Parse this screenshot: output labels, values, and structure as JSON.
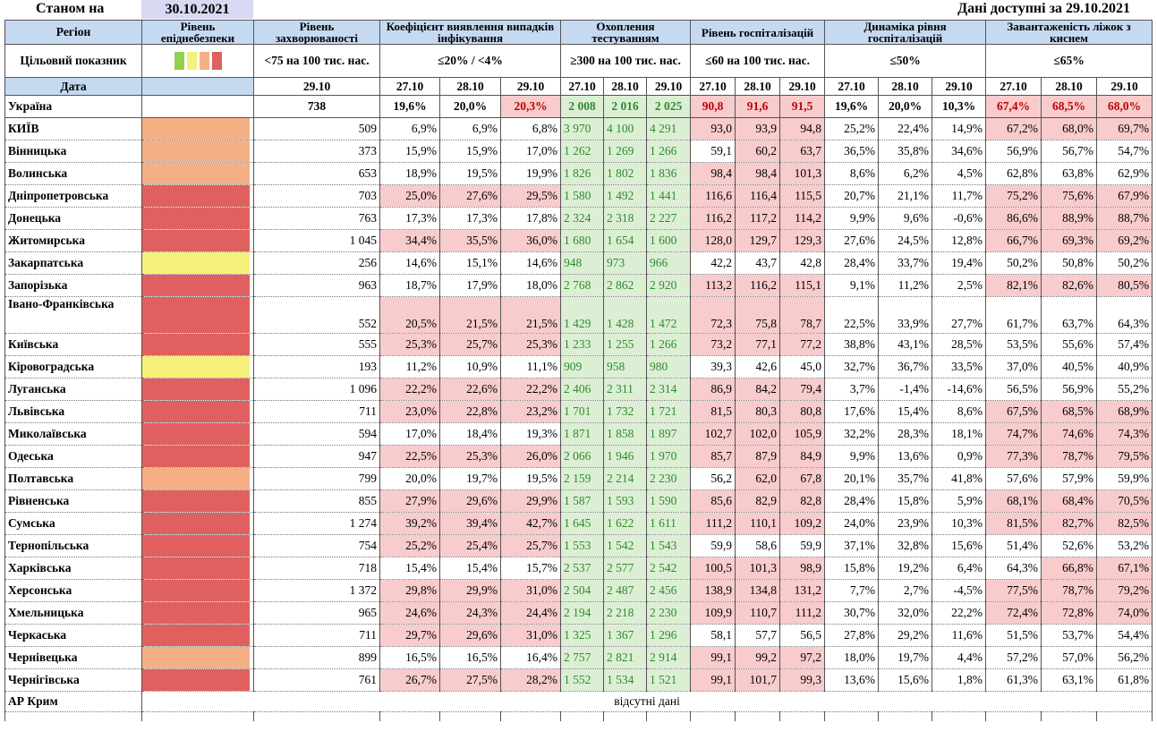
{
  "header": {
    "asof_label": "Станом на",
    "asof_date": "30.10.2021",
    "available_label": "Дані доступні за 29.10.2021"
  },
  "columns": {
    "region": "Регіон",
    "level": "Рівень епіднебезпеки",
    "incidence": "Рівень захворюваності",
    "detection": "Коефіцієнт виявлення випадків інфікування",
    "testing": "Охоплення тестуванням",
    "hosp": "Рівень госпіталізацій",
    "hosp_dyn": "Динаміка рівня госпіталізацій",
    "oxygen": "Завантаженість ліжок з киснем"
  },
  "targets": {
    "label": "Цільовий показник",
    "incidence": "<75 на 100 тис. нас.",
    "detection": "≤20% / <4%",
    "testing": "≥300 на 100 тис. нас.",
    "hosp": "≤60 на 100 тис. нас.",
    "hosp_dyn": "≤50%",
    "oxygen": "≤65%"
  },
  "legend_colors": [
    "#92d050",
    "#f4f07a",
    "#f4b084",
    "#e06060"
  ],
  "dates": {
    "label": "Дата",
    "incidence": "29.10",
    "triple": [
      "27.10",
      "28.10",
      "29.10"
    ]
  },
  "level_colors": {
    "orange": "#f4b084",
    "red": "#e06060",
    "yellow": "#f4f07a"
  },
  "ukraine": {
    "name": "Україна",
    "incidence": "738",
    "detection": [
      "19,6%",
      "20,0%",
      "20,3%"
    ],
    "testing": [
      "2 008",
      "2 016",
      "2 025"
    ],
    "hosp": [
      "90,8",
      "91,6",
      "91,5"
    ],
    "hosp_dyn": [
      "19,6%",
      "20,0%",
      "10,3%"
    ],
    "oxygen": [
      "67,4%",
      "68,5%",
      "68,0%"
    ]
  },
  "regions": [
    {
      "name": "КИЇВ",
      "level": "orange",
      "incidence": "509",
      "detection": [
        "6,9%",
        "6,9%",
        "6,8%"
      ],
      "testing": [
        "3 970",
        "4 100",
        "4 291"
      ],
      "hosp": [
        "93,0",
        "93,9",
        "94,8"
      ],
      "hosp_dyn": [
        "25,2%",
        "22,4%",
        "14,9%"
      ],
      "oxygen": [
        "67,2%",
        "68,0%",
        "69,7%"
      ]
    },
    {
      "name": "Вінницька",
      "level": "orange",
      "incidence": "373",
      "detection": [
        "15,9%",
        "15,9%",
        "17,0%"
      ],
      "testing": [
        "1 262",
        "1 269",
        "1 266"
      ],
      "hosp": [
        "59,1",
        "60,2",
        "63,7"
      ],
      "hosp_dyn": [
        "36,5%",
        "35,8%",
        "34,6%"
      ],
      "oxygen": [
        "56,9%",
        "56,7%",
        "54,7%"
      ]
    },
    {
      "name": "Волинська",
      "level": "orange",
      "incidence": "653",
      "detection": [
        "18,9%",
        "19,5%",
        "19,9%"
      ],
      "testing": [
        "1 826",
        "1 802",
        "1 836"
      ],
      "hosp": [
        "98,4",
        "98,4",
        "101,3"
      ],
      "hosp_dyn": [
        "8,6%",
        "6,2%",
        "4,5%"
      ],
      "oxygen": [
        "62,8%",
        "63,8%",
        "62,9%"
      ]
    },
    {
      "name": "Дніпропетровська",
      "level": "red",
      "incidence": "703",
      "detection": [
        "25,0%",
        "27,6%",
        "29,5%"
      ],
      "testing": [
        "1 580",
        "1 492",
        "1 441"
      ],
      "hosp": [
        "116,6",
        "116,4",
        "115,5"
      ],
      "hosp_dyn": [
        "20,7%",
        "21,1%",
        "11,7%"
      ],
      "oxygen": [
        "75,2%",
        "75,6%",
        "67,9%"
      ]
    },
    {
      "name": "Донецька",
      "level": "red",
      "incidence": "763",
      "detection": [
        "17,3%",
        "17,3%",
        "17,8%"
      ],
      "testing": [
        "2 324",
        "2 318",
        "2 227"
      ],
      "hosp": [
        "116,2",
        "117,2",
        "114,2"
      ],
      "hosp_dyn": [
        "9,9%",
        "9,6%",
        "-0,6%"
      ],
      "oxygen": [
        "86,6%",
        "88,9%",
        "88,7%"
      ]
    },
    {
      "name": "Житомирська",
      "level": "red",
      "incidence": "1 045",
      "detection": [
        "34,4%",
        "35,5%",
        "36,0%"
      ],
      "testing": [
        "1 680",
        "1 654",
        "1 600"
      ],
      "hosp": [
        "128,0",
        "129,7",
        "129,3"
      ],
      "hosp_dyn": [
        "27,6%",
        "24,5%",
        "12,8%"
      ],
      "oxygen": [
        "66,7%",
        "69,3%",
        "69,2%"
      ]
    },
    {
      "name": "Закарпатська",
      "level": "yellow",
      "incidence": "256",
      "detection": [
        "14,6%",
        "15,1%",
        "14,6%"
      ],
      "testing": [
        "948",
        "973",
        "966"
      ],
      "hosp": [
        "42,2",
        "43,7",
        "42,8"
      ],
      "hosp_dyn": [
        "28,4%",
        "33,7%",
        "19,4%"
      ],
      "oxygen": [
        "50,2%",
        "50,8%",
        "50,2%"
      ]
    },
    {
      "name": "Запорізька",
      "level": "red",
      "incidence": "963",
      "detection": [
        "18,7%",
        "17,9%",
        "18,0%"
      ],
      "testing": [
        "2 768",
        "2 862",
        "2 920"
      ],
      "hosp": [
        "113,2",
        "116,2",
        "115,1"
      ],
      "hosp_dyn": [
        "9,1%",
        "11,2%",
        "2,5%"
      ],
      "oxygen": [
        "82,1%",
        "82,6%",
        "80,5%"
      ]
    },
    {
      "name": "Івано-Франківська",
      "level": "red",
      "incidence": "552",
      "detection": [
        "20,5%",
        "21,5%",
        "21,5%"
      ],
      "testing": [
        "1 429",
        "1 428",
        "1 472"
      ],
      "hosp": [
        "72,3",
        "75,8",
        "78,7"
      ],
      "hosp_dyn": [
        "22,5%",
        "33,9%",
        "27,7%"
      ],
      "oxygen": [
        "61,7%",
        "63,7%",
        "64,3%"
      ]
    },
    {
      "name": "Київська",
      "level": "red",
      "incidence": "555",
      "detection": [
        "25,3%",
        "25,7%",
        "25,3%"
      ],
      "testing": [
        "1 233",
        "1 255",
        "1 266"
      ],
      "hosp": [
        "73,2",
        "77,1",
        "77,2"
      ],
      "hosp_dyn": [
        "38,8%",
        "43,1%",
        "28,5%"
      ],
      "oxygen": [
        "53,5%",
        "55,6%",
        "57,4%"
      ]
    },
    {
      "name": "Кіровоградська",
      "level": "yellow",
      "incidence": "193",
      "detection": [
        "11,2%",
        "10,9%",
        "11,1%"
      ],
      "testing": [
        "909",
        "958",
        "980"
      ],
      "hosp": [
        "39,3",
        "42,6",
        "45,0"
      ],
      "hosp_dyn": [
        "32,7%",
        "36,7%",
        "33,5%"
      ],
      "oxygen": [
        "37,0%",
        "40,5%",
        "40,9%"
      ]
    },
    {
      "name": "Луганська",
      "level": "red",
      "incidence": "1 096",
      "detection": [
        "22,2%",
        "22,6%",
        "22,2%"
      ],
      "testing": [
        "2 406",
        "2 311",
        "2 314"
      ],
      "hosp": [
        "86,9",
        "84,2",
        "79,4"
      ],
      "hosp_dyn": [
        "3,7%",
        "-1,4%",
        "-14,6%"
      ],
      "oxygen": [
        "56,5%",
        "56,9%",
        "55,2%"
      ]
    },
    {
      "name": "Львівська",
      "level": "red",
      "incidence": "711",
      "detection": [
        "23,0%",
        "22,8%",
        "23,2%"
      ],
      "testing": [
        "1 701",
        "1 732",
        "1 721"
      ],
      "hosp": [
        "81,5",
        "80,3",
        "80,8"
      ],
      "hosp_dyn": [
        "17,6%",
        "15,4%",
        "8,6%"
      ],
      "oxygen": [
        "67,5%",
        "68,5%",
        "68,9%"
      ]
    },
    {
      "name": "Миколаївська",
      "level": "red",
      "incidence": "594",
      "detection": [
        "17,0%",
        "18,4%",
        "19,3%"
      ],
      "testing": [
        "1 871",
        "1 858",
        "1 897"
      ],
      "hosp": [
        "102,7",
        "102,0",
        "105,9"
      ],
      "hosp_dyn": [
        "32,2%",
        "28,3%",
        "18,1%"
      ],
      "oxygen": [
        "74,7%",
        "74,6%",
        "74,3%"
      ]
    },
    {
      "name": "Одеська",
      "level": "red",
      "incidence": "947",
      "detection": [
        "22,5%",
        "25,3%",
        "26,0%"
      ],
      "testing": [
        "2 066",
        "1 946",
        "1 970"
      ],
      "hosp": [
        "85,7",
        "87,9",
        "84,9"
      ],
      "hosp_dyn": [
        "9,9%",
        "13,6%",
        "0,9%"
      ],
      "oxygen": [
        "77,3%",
        "78,7%",
        "79,5%"
      ]
    },
    {
      "name": "Полтавська",
      "level": "orange",
      "incidence": "799",
      "detection": [
        "20,0%",
        "19,7%",
        "19,5%"
      ],
      "testing": [
        "2 159",
        "2 214",
        "2 230"
      ],
      "hosp": [
        "56,2",
        "62,0",
        "67,8"
      ],
      "hosp_dyn": [
        "20,1%",
        "35,7%",
        "41,8%"
      ],
      "oxygen": [
        "57,6%",
        "57,9%",
        "59,9%"
      ]
    },
    {
      "name": "Рівненська",
      "level": "red",
      "incidence": "855",
      "detection": [
        "27,9%",
        "29,6%",
        "29,9%"
      ],
      "testing": [
        "1 587",
        "1 593",
        "1 590"
      ],
      "hosp": [
        "85,6",
        "82,9",
        "82,8"
      ],
      "hosp_dyn": [
        "28,4%",
        "15,8%",
        "5,9%"
      ],
      "oxygen": [
        "68,1%",
        "68,4%",
        "70,5%"
      ]
    },
    {
      "name": "Сумська",
      "level": "red",
      "incidence": "1 274",
      "detection": [
        "39,2%",
        "39,4%",
        "42,7%"
      ],
      "testing": [
        "1 645",
        "1 622",
        "1 611"
      ],
      "hosp": [
        "111,2",
        "110,1",
        "109,2"
      ],
      "hosp_dyn": [
        "24,0%",
        "23,9%",
        "10,3%"
      ],
      "oxygen": [
        "81,5%",
        "82,7%",
        "82,5%"
      ]
    },
    {
      "name": "Тернопільська",
      "level": "red",
      "incidence": "754",
      "detection": [
        "25,2%",
        "25,4%",
        "25,7%"
      ],
      "testing": [
        "1 553",
        "1 542",
        "1 543"
      ],
      "hosp": [
        "59,9",
        "58,6",
        "59,9"
      ],
      "hosp_dyn": [
        "37,1%",
        "32,8%",
        "15,6%"
      ],
      "oxygen": [
        "51,4%",
        "52,6%",
        "53,2%"
      ]
    },
    {
      "name": "Харківська",
      "level": "red",
      "incidence": "718",
      "detection": [
        "15,4%",
        "15,4%",
        "15,7%"
      ],
      "testing": [
        "2 537",
        "2 577",
        "2 542"
      ],
      "hosp": [
        "100,5",
        "101,3",
        "98,9"
      ],
      "hosp_dyn": [
        "15,8%",
        "19,2%",
        "6,4%"
      ],
      "oxygen": [
        "64,3%",
        "66,8%",
        "67,1%"
      ]
    },
    {
      "name": "Херсонська",
      "level": "red",
      "incidence": "1 372",
      "detection": [
        "29,8%",
        "29,9%",
        "31,0%"
      ],
      "testing": [
        "2 504",
        "2 487",
        "2 456"
      ],
      "hosp": [
        "138,9",
        "134,8",
        "131,2"
      ],
      "hosp_dyn": [
        "7,7%",
        "2,7%",
        "-4,5%"
      ],
      "oxygen": [
        "77,5%",
        "78,7%",
        "79,2%"
      ]
    },
    {
      "name": "Хмельницька",
      "level": "red",
      "incidence": "965",
      "detection": [
        "24,6%",
        "24,3%",
        "24,4%"
      ],
      "testing": [
        "2 194",
        "2 218",
        "2 230"
      ],
      "hosp": [
        "109,9",
        "110,7",
        "111,2"
      ],
      "hosp_dyn": [
        "30,7%",
        "32,0%",
        "22,2%"
      ],
      "oxygen": [
        "72,4%",
        "72,8%",
        "74,0%"
      ]
    },
    {
      "name": "Черкаська",
      "level": "red",
      "incidence": "711",
      "detection": [
        "29,7%",
        "29,6%",
        "31,0%"
      ],
      "testing": [
        "1 325",
        "1 367",
        "1 296"
      ],
      "hosp": [
        "58,1",
        "57,7",
        "56,5"
      ],
      "hosp_dyn": [
        "27,8%",
        "29,2%",
        "11,6%"
      ],
      "oxygen": [
        "51,5%",
        "53,7%",
        "54,4%"
      ]
    },
    {
      "name": "Чернівецька",
      "level": "orange",
      "incidence": "899",
      "detection": [
        "16,5%",
        "16,5%",
        "16,4%"
      ],
      "testing": [
        "2 757",
        "2 821",
        "2 914"
      ],
      "hosp": [
        "99,1",
        "99,2",
        "97,2"
      ],
      "hosp_dyn": [
        "18,0%",
        "19,7%",
        "4,4%"
      ],
      "oxygen": [
        "57,2%",
        "57,0%",
        "56,2%"
      ]
    },
    {
      "name": "Чернігівська",
      "level": "red",
      "incidence": "761",
      "detection": [
        "26,7%",
        "27,5%",
        "28,2%"
      ],
      "testing": [
        "1 552",
        "1 534",
        "1 521"
      ],
      "hosp": [
        "99,1",
        "101,7",
        "99,3"
      ],
      "hosp_dyn": [
        "13,6%",
        "15,6%",
        "1,8%"
      ],
      "oxygen": [
        "61,3%",
        "63,1%",
        "61,8%"
      ]
    }
  ],
  "crimea": {
    "name": "АР Крим",
    "note": "відсутні дані"
  }
}
